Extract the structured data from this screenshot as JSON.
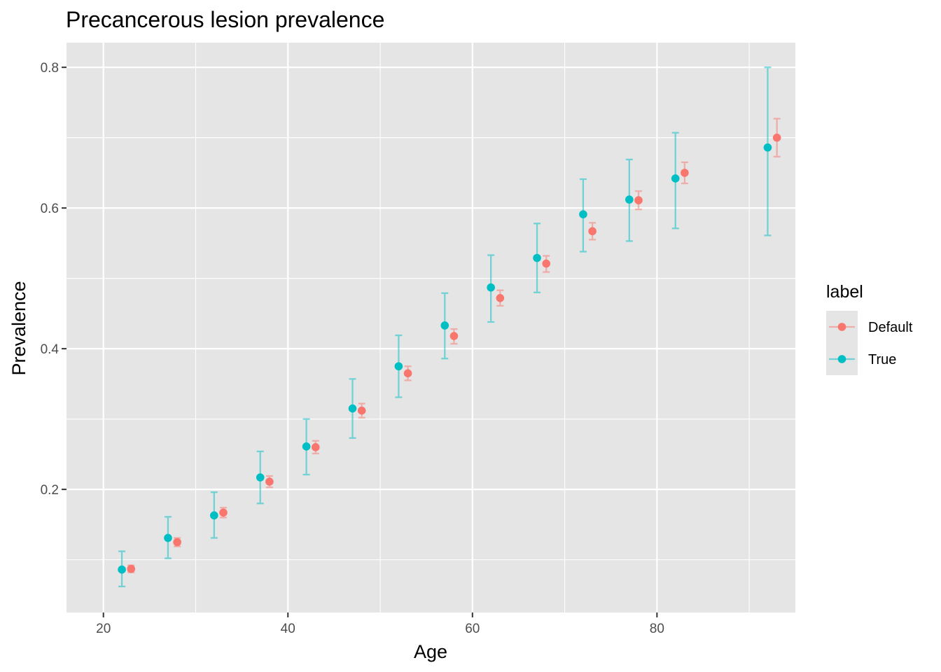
{
  "chart_data": {
    "type": "scatter",
    "title": "Precancerous lesion prevalence",
    "xlabel": "Age",
    "ylabel": "Prevalence",
    "xlim": [
      16,
      95
    ],
    "ylim": [
      0.025,
      0.835
    ],
    "x_ticks": [
      20,
      40,
      60,
      80
    ],
    "y_ticks": [
      0.2,
      0.4,
      0.6,
      0.8
    ],
    "x_minor": [
      30,
      50,
      70,
      90
    ],
    "y_minor": [
      0.1,
      0.3,
      0.5,
      0.7
    ],
    "x_tick_labels": [
      "20",
      "40",
      "60",
      "80"
    ],
    "y_tick_labels": [
      "0.2",
      "0.4",
      "0.6",
      "0.8"
    ],
    "grid": true,
    "legend": {
      "title": "label",
      "placement": "right"
    },
    "colors": {
      "panel": "#e5e5e5",
      "grid": "#ffffff",
      "text": "#4d4d4d"
    },
    "series": [
      {
        "name": "Default",
        "color": "#f8766d",
        "points": [
          {
            "x": 23,
            "y": 0.087,
            "lo": 0.082,
            "hi": 0.092
          },
          {
            "x": 28,
            "y": 0.125,
            "lo": 0.119,
            "hi": 0.131
          },
          {
            "x": 33,
            "y": 0.167,
            "lo": 0.16,
            "hi": 0.174
          },
          {
            "x": 38,
            "y": 0.211,
            "lo": 0.203,
            "hi": 0.219
          },
          {
            "x": 43,
            "y": 0.26,
            "lo": 0.251,
            "hi": 0.269
          },
          {
            "x": 48,
            "y": 0.312,
            "lo": 0.302,
            "hi": 0.322
          },
          {
            "x": 53,
            "y": 0.365,
            "lo": 0.355,
            "hi": 0.375
          },
          {
            "x": 58,
            "y": 0.418,
            "lo": 0.407,
            "hi": 0.428
          },
          {
            "x": 63,
            "y": 0.472,
            "lo": 0.461,
            "hi": 0.483
          },
          {
            "x": 68,
            "y": 0.521,
            "lo": 0.509,
            "hi": 0.532
          },
          {
            "x": 73,
            "y": 0.567,
            "lo": 0.555,
            "hi": 0.579
          },
          {
            "x": 78,
            "y": 0.611,
            "lo": 0.598,
            "hi": 0.624
          },
          {
            "x": 83,
            "y": 0.65,
            "lo": 0.635,
            "hi": 0.665
          },
          {
            "x": 93,
            "y": 0.7,
            "lo": 0.673,
            "hi": 0.727
          }
        ]
      },
      {
        "name": "True",
        "color": "#00bfc4",
        "points": [
          {
            "x": 22,
            "y": 0.086,
            "lo": 0.062,
            "hi": 0.112
          },
          {
            "x": 27,
            "y": 0.131,
            "lo": 0.102,
            "hi": 0.161
          },
          {
            "x": 32,
            "y": 0.163,
            "lo": 0.131,
            "hi": 0.196
          },
          {
            "x": 37,
            "y": 0.217,
            "lo": 0.18,
            "hi": 0.254
          },
          {
            "x": 42,
            "y": 0.261,
            "lo": 0.221,
            "hi": 0.3
          },
          {
            "x": 47,
            "y": 0.315,
            "lo": 0.273,
            "hi": 0.357
          },
          {
            "x": 52,
            "y": 0.375,
            "lo": 0.331,
            "hi": 0.419
          },
          {
            "x": 57,
            "y": 0.433,
            "lo": 0.386,
            "hi": 0.479
          },
          {
            "x": 62,
            "y": 0.487,
            "lo": 0.438,
            "hi": 0.533
          },
          {
            "x": 67,
            "y": 0.529,
            "lo": 0.48,
            "hi": 0.578
          },
          {
            "x": 72,
            "y": 0.591,
            "lo": 0.538,
            "hi": 0.641
          },
          {
            "x": 77,
            "y": 0.612,
            "lo": 0.553,
            "hi": 0.669
          },
          {
            "x": 82,
            "y": 0.642,
            "lo": 0.571,
            "hi": 0.707
          },
          {
            "x": 92,
            "y": 0.686,
            "lo": 0.561,
            "hi": 0.8
          }
        ]
      }
    ]
  }
}
